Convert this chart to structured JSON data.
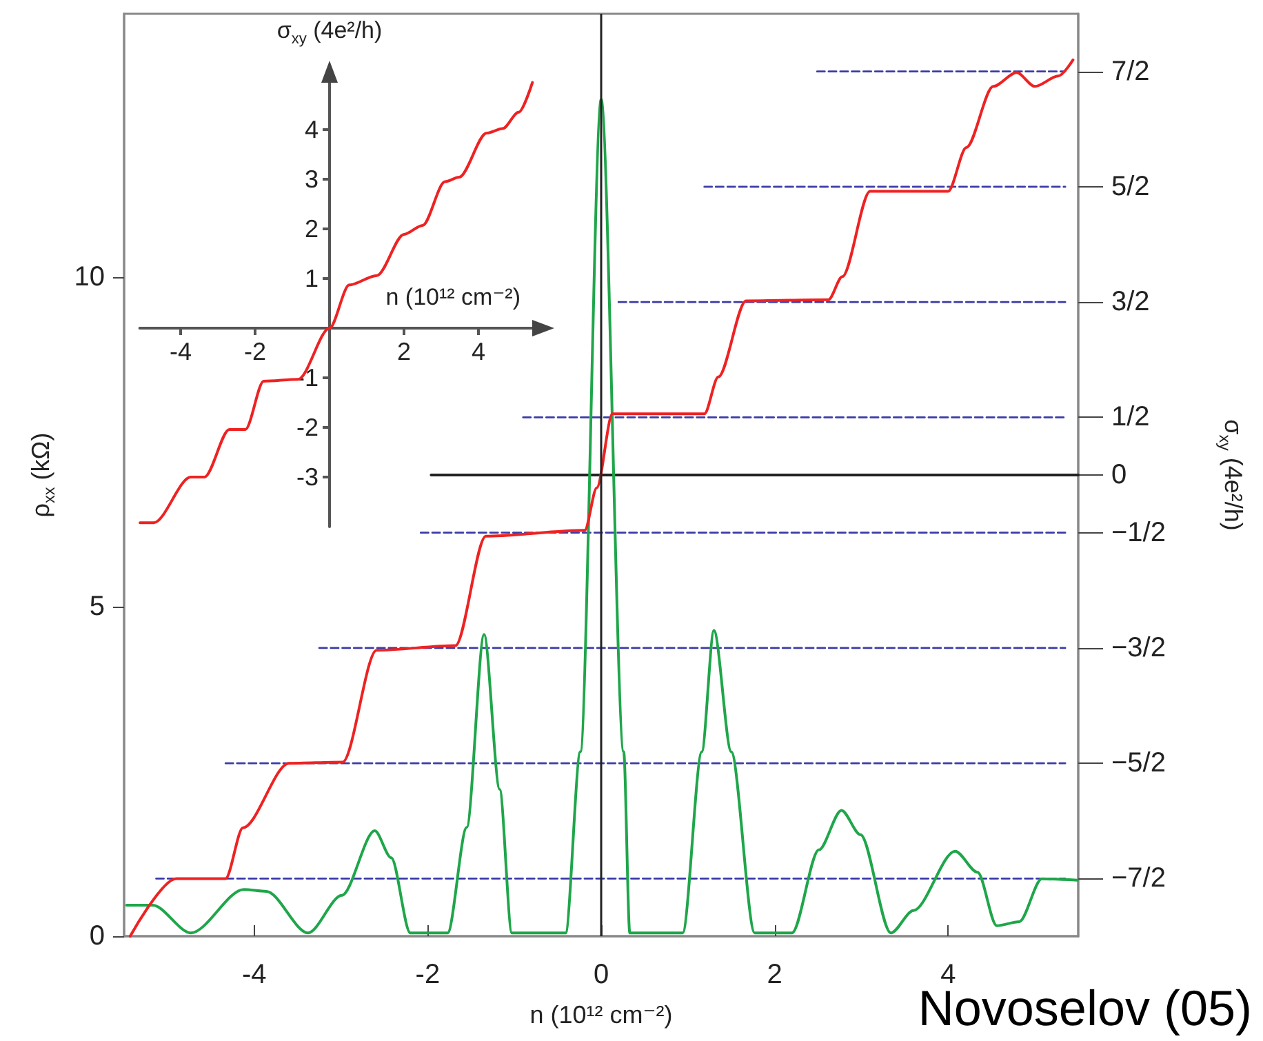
{
  "chart_data": [
    {
      "type": "line",
      "xlabel": "n (10¹² cm⁻²)",
      "ylabel": "ρ$_{xx}$ (kΩ)",
      "y2label": "σ$_{xy}$ (4e²/h)",
      "xlim": [
        -5.5,
        5.5
      ],
      "xticks": [
        -4,
        -2,
        0,
        2,
        4
      ],
      "ylim": [
        0,
        14
      ],
      "yticks": [
        0,
        5,
        10
      ],
      "y2lim": [
        -4,
        4
      ],
      "y2ticks": [
        {
          "value": 3.5,
          "label": "7/2"
        },
        {
          "value": 2.5,
          "label": "5/2"
        },
        {
          "value": 1.5,
          "label": "3/2"
        },
        {
          "value": 0.5,
          "label": "1/2"
        },
        0,
        {
          "value": -0.5,
          "label": "−1/2"
        },
        {
          "value": -1.5,
          "label": "−3/2"
        },
        {
          "value": -2.5,
          "label": "−5/2"
        },
        {
          "value": -3.5,
          "label": "−7/2"
        }
      ],
      "marker": "none",
      "ref_lines": [
        {
          "axis": "x",
          "value": 0,
          "color": "#222222"
        }
      ],
      "annotations": [
        "Novoselov (05)"
      ],
      "series": [
        {
          "color": "#3a3aa8",
          "line_style": "dashed",
          "axis": "y2",
          "x": [
            2.49,
            5.35
          ],
          "values": [
            3.5,
            3.5
          ]
        },
        {
          "color": "#3a3aa8",
          "line_style": "dashed",
          "axis": "y2",
          "x": [
            1.19,
            5.35
          ],
          "values": [
            2.5,
            2.5
          ]
        },
        {
          "color": "#3a3aa8",
          "line_style": "dashed",
          "axis": "y2",
          "x": [
            0.2,
            5.35
          ],
          "values": [
            1.5,
            1.5
          ]
        },
        {
          "color": "#3a3aa8",
          "line_style": "dashed",
          "axis": "y2",
          "x": [
            -0.9,
            5.35
          ],
          "values": [
            0.5,
            0.5
          ]
        },
        {
          "color": "#3a3aa8",
          "line_style": "dashed",
          "axis": "y2",
          "x": [
            -2.08,
            5.35
          ],
          "values": [
            -0.5,
            -0.5
          ]
        },
        {
          "color": "#3a3aa8",
          "line_style": "dashed",
          "axis": "y2",
          "x": [
            -3.25,
            5.35
          ],
          "values": [
            -1.5,
            -1.5
          ]
        },
        {
          "color": "#3a3aa8",
          "line_style": "dashed",
          "axis": "y2",
          "x": [
            -4.33,
            5.35
          ],
          "values": [
            -2.5,
            -2.5
          ]
        },
        {
          "color": "#3a3aa8",
          "line_style": "dashed",
          "axis": "y2",
          "x": [
            -5.13,
            5.35
          ],
          "values": [
            -3.5,
            -3.5
          ]
        },
        {
          "color": "#222222",
          "line_style": "solid",
          "axis": "y2",
          "x": [
            -1.96,
            5.5
          ],
          "values": [
            0,
            0
          ]
        },
        {
          "color": "#1fa64a",
          "line_style": "solid",
          "x": [
            -5.47,
            -5.17,
            -4.73,
            -4.12,
            -3.86,
            -3.38,
            -2.99,
            -2.61,
            -2.42,
            -2.2,
            -1.77,
            -1.55,
            -1.35,
            -1.17,
            -1.03,
            -0.41,
            -0.24,
            0,
            0.26,
            0.33,
            0.94,
            1.16,
            1.3,
            1.5,
            1.77,
            2.2,
            2.51,
            2.77,
            2.99,
            3.34,
            3.6,
            4.08,
            4.34,
            4.56,
            4.82,
            5.08,
            5.49
          ],
          "values": [
            0.47,
            0.47,
            0.05,
            0.71,
            0.68,
            0.05,
            0.62,
            1.6,
            1.19,
            0.05,
            0.05,
            1.65,
            4.58,
            2.23,
            0.05,
            0.05,
            2.8,
            12.7,
            2.8,
            0.05,
            0.05,
            2.8,
            4.64,
            2.8,
            0.05,
            0.05,
            1.31,
            1.91,
            1.54,
            0.05,
            0.39,
            1.29,
            0.97,
            0.16,
            0.22,
            0.87,
            0.85
          ]
        },
        {
          "color": "#ee2222",
          "line_style": "solid",
          "axis": "y2",
          "x": [
            -5.43,
            -4.9,
            -4.33,
            -4.13,
            -3.6,
            -2.98,
            -2.59,
            -1.68,
            -1.33,
            -0.19,
            -0.05,
            0.13,
            1.19,
            1.35,
            1.67,
            2.62,
            2.78,
            3.1,
            4.0,
            4.21,
            4.52,
            4.79,
            5.0,
            5.27,
            5.44
          ],
          "values": [
            -4.0,
            -3.5,
            -3.5,
            -3.06,
            -2.5,
            -2.49,
            -1.52,
            -1.48,
            -0.53,
            -0.48,
            -0.11,
            0.53,
            0.53,
            0.85,
            1.51,
            1.52,
            1.72,
            2.46,
            2.46,
            2.84,
            3.37,
            3.49,
            3.37,
            3.46,
            3.6
          ]
        }
      ]
    },
    {
      "type": "line",
      "xlabel": "n (10¹² cm⁻²)",
      "ylabel": "σ$_{xy}$ (4e²/h)",
      "xlim": [
        -5.1,
        5.5
      ],
      "xticks": [
        -4,
        -2,
        2,
        4
      ],
      "ylim": [
        -4,
        5
      ],
      "yticks": [
        -3,
        -2,
        -1,
        1,
        2,
        3,
        4
      ],
      "marker": "none",
      "series": [
        {
          "color": "#ee2222",
          "line_style": "solid",
          "x": [
            -5.09,
            -4.72,
            -3.73,
            -3.36,
            -2.69,
            -2.26,
            -1.77,
            -0.84,
            0,
            0.53,
            1.27,
            2.0,
            2.5,
            3.1,
            3.48,
            4.22,
            4.65,
            5.08,
            5.45
          ],
          "values": [
            -3.92,
            -3.92,
            -3.0,
            -3.0,
            -2.04,
            -2.04,
            -1.07,
            -1.03,
            0,
            0.87,
            1.06,
            1.89,
            2.07,
            2.95,
            3.04,
            3.93,
            4.02,
            4.35,
            4.95
          ]
        }
      ]
    }
  ]
}
